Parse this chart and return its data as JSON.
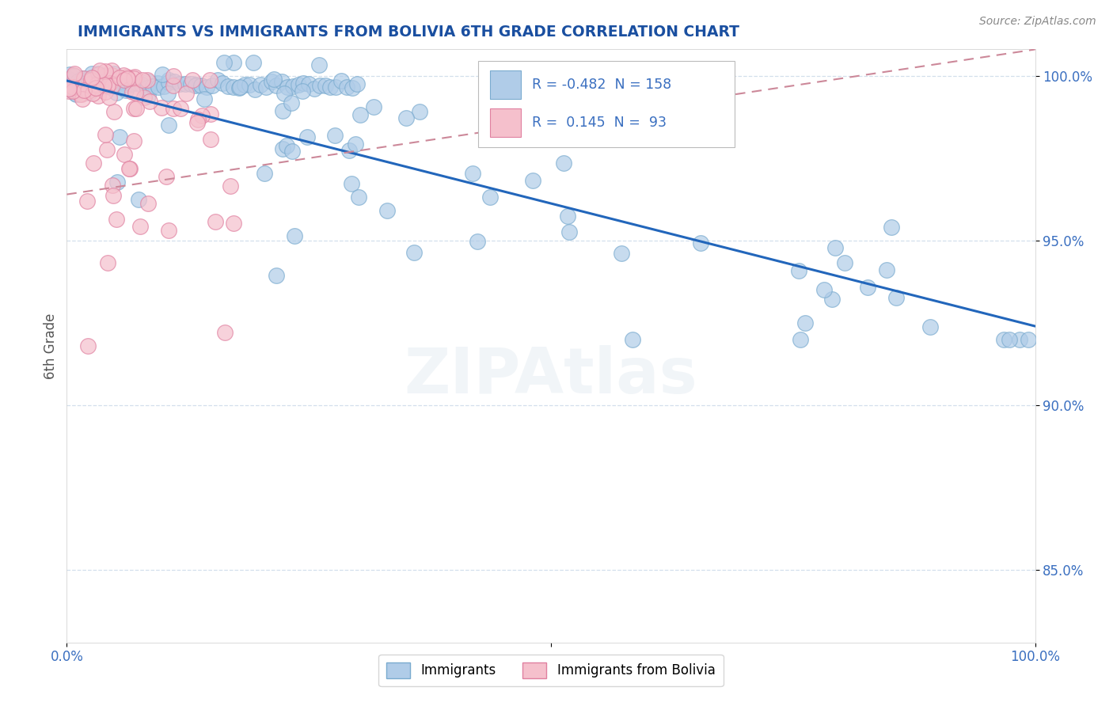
{
  "title": "IMMIGRANTS VS IMMIGRANTS FROM BOLIVIA 6TH GRADE CORRELATION CHART",
  "source": "Source: ZipAtlas.com",
  "ylabel": "6th Grade",
  "watermark": "ZIPAtlas",
  "R_blue": -0.482,
  "N_blue": 158,
  "R_pink": 0.145,
  "N_pink": 93,
  "blue_line_x0": 0.0,
  "blue_line_x1": 1.0,
  "blue_line_y0": 0.9985,
  "blue_line_y1": 0.924,
  "pink_line_x0": 0.0,
  "pink_line_x1": 1.0,
  "pink_line_y0": 0.964,
  "pink_line_y1": 1.008,
  "xlim": [
    0.0,
    1.0
  ],
  "ylim": [
    0.828,
    1.008
  ],
  "yticks": [
    0.85,
    0.9,
    0.95,
    1.0
  ],
  "ytick_labels": [
    "85.0%",
    "90.0%",
    "95.0%",
    "100.0%"
  ],
  "xticks": [
    0.0,
    0.5,
    1.0
  ],
  "xtick_labels": [
    "0.0%",
    "",
    "100.0%"
  ],
  "title_color": "#1a4fa0",
  "axis_color": "#3a6fc0",
  "scatter_blue_color": "#b0cce8",
  "scatter_blue_edge": "#7aabcf",
  "scatter_pink_color": "#f5c0cc",
  "scatter_pink_edge": "#e080a0",
  "trend_blue_color": "#2266bb",
  "trend_pink_color": "#cc8899",
  "background_color": "#ffffff",
  "grid_color": "#c8d8e8"
}
